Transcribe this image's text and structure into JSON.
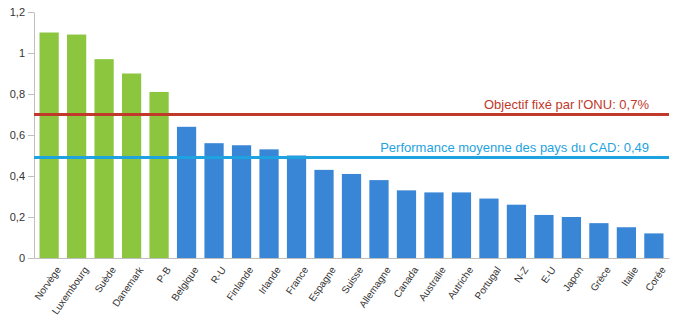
{
  "chart_data": {
    "type": "bar",
    "categories": [
      "Norvège",
      "Luxembourg",
      "Suède",
      "Danemark",
      "P-B",
      "Belgique",
      "R-U",
      "Finlande",
      "Irlande",
      "France",
      "Espagne",
      "Suisse",
      "Allemagne",
      "Canada",
      "Australie",
      "Autriche",
      "Portugal",
      "N-Z",
      "E-U",
      "Japon",
      "Grèce",
      "Italie",
      "Corée"
    ],
    "values": [
      1.1,
      1.09,
      0.97,
      0.9,
      0.81,
      0.64,
      0.56,
      0.55,
      0.53,
      0.5,
      0.43,
      0.41,
      0.38,
      0.33,
      0.32,
      0.32,
      0.29,
      0.26,
      0.21,
      0.2,
      0.17,
      0.15,
      0.12
    ],
    "colors": [
      "#8cc63f",
      "#8cc63f",
      "#8cc63f",
      "#8cc63f",
      "#8cc63f",
      "#3a86d6",
      "#3a86d6",
      "#3a86d6",
      "#3a86d6",
      "#3a86d6",
      "#3a86d6",
      "#3a86d6",
      "#3a86d6",
      "#3a86d6",
      "#3a86d6",
      "#3a86d6",
      "#3a86d6",
      "#3a86d6",
      "#3a86d6",
      "#3a86d6",
      "#3a86d6",
      "#3a86d6",
      "#3a86d6"
    ],
    "ylim": [
      0,
      1.2
    ],
    "yticks": [
      0,
      {
        "value": 0.2,
        "label": "0,2"
      },
      {
        "value": 0.4,
        "label": "0,4"
      },
      {
        "value": 0.6,
        "label": "0,6"
      },
      {
        "value": 0.8,
        "label": "0,8"
      },
      1,
      {
        "value": 1.2,
        "label": "1,2"
      }
    ],
    "grid": false,
    "annotations": [
      {
        "label": "Objectif fixé par  l'ONU: 0,7%",
        "value": 0.7,
        "color": "#c0392b"
      },
      {
        "label": "Performance moyenne des pays du CAD: 0,49",
        "value": 0.49,
        "color": "#1fa3e0"
      }
    ]
  }
}
